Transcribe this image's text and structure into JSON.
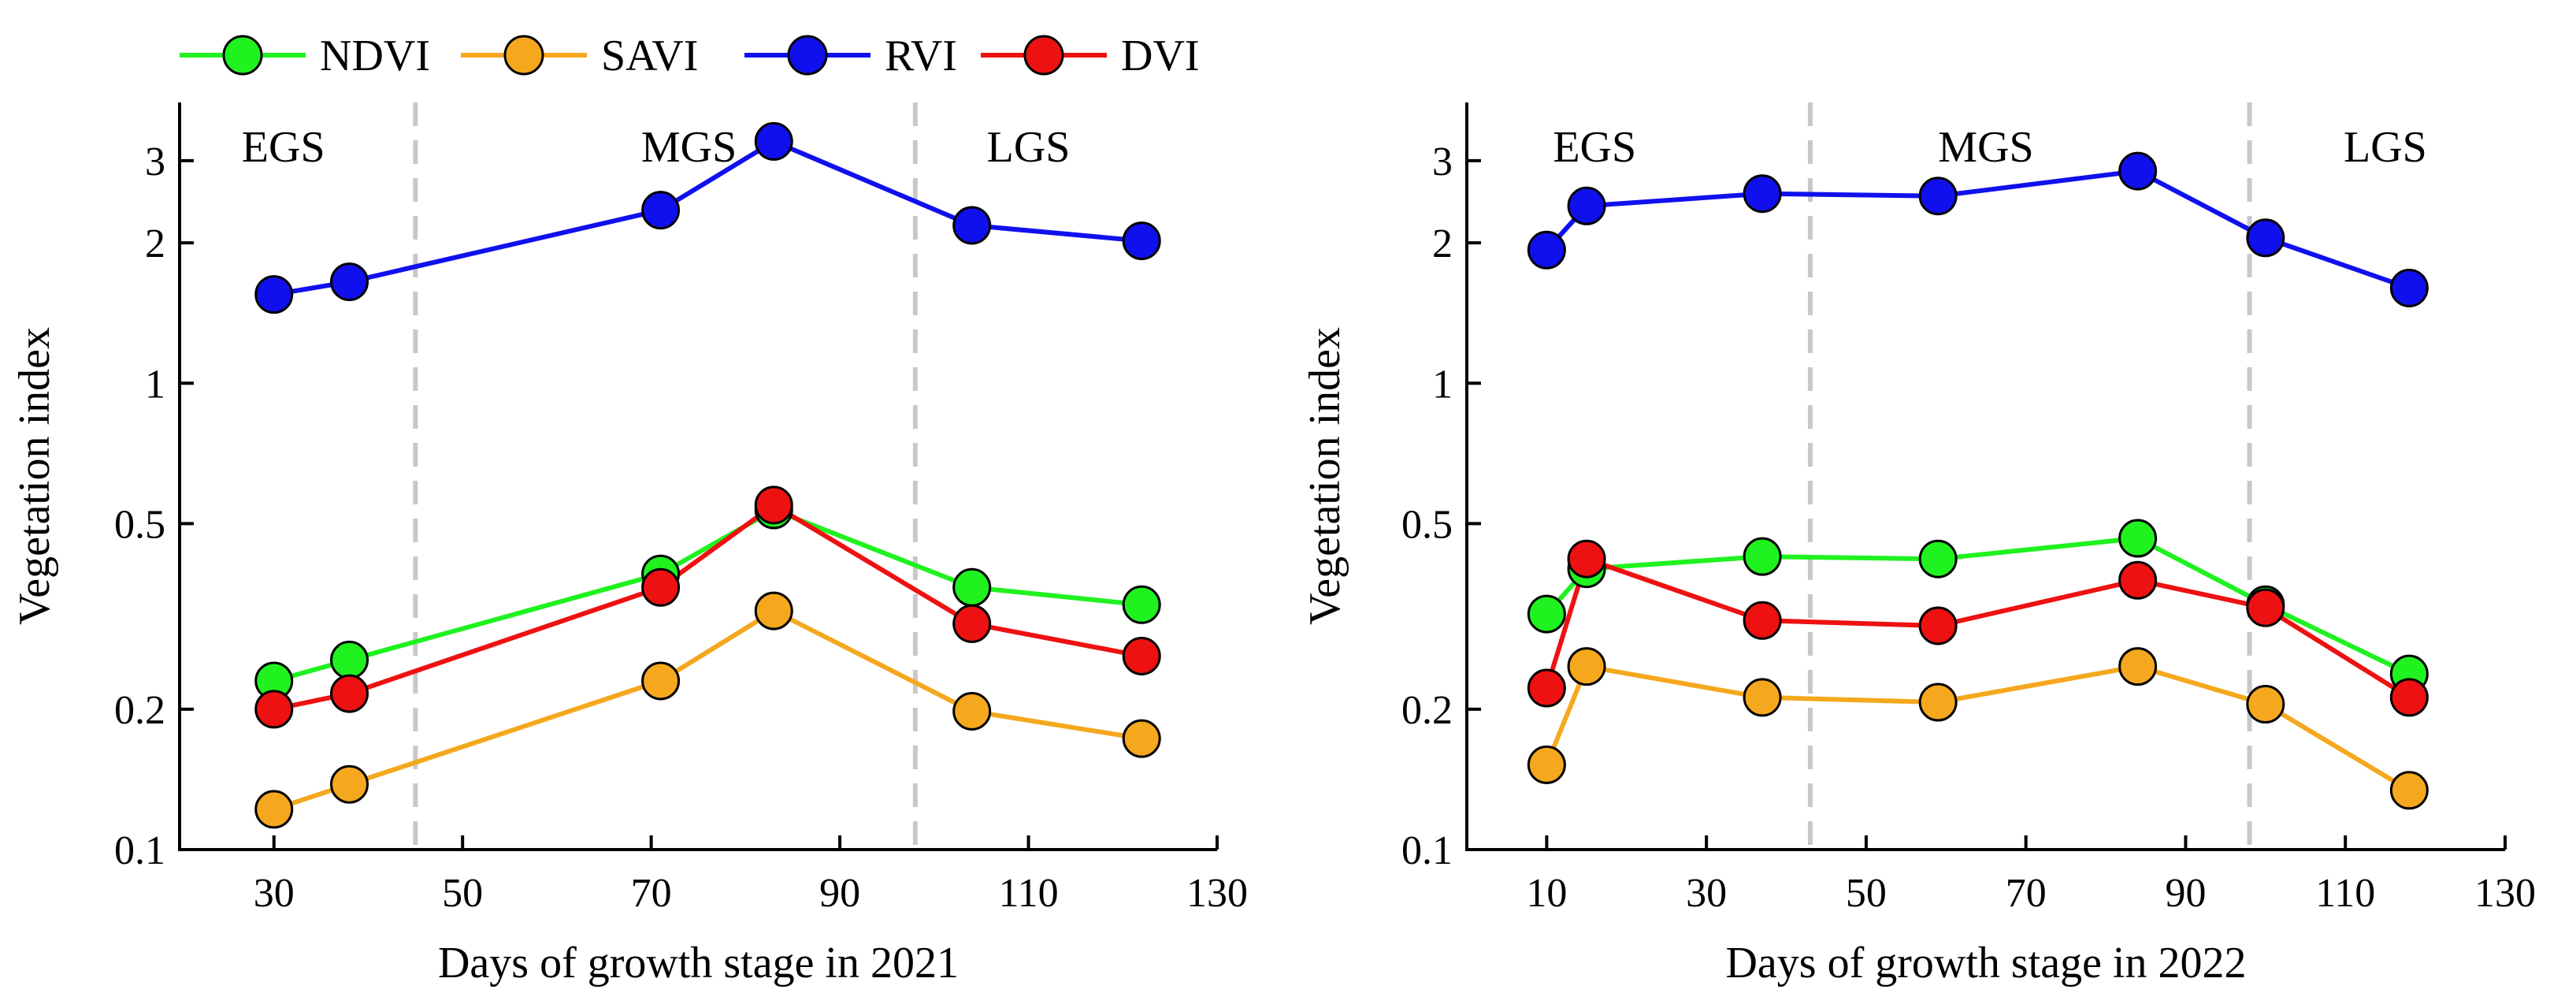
{
  "legend": [
    {
      "name": "NDVI",
      "color": "#1ff21f"
    },
    {
      "name": "SAVI",
      "color": "#f5a81e"
    },
    {
      "name": "RVI",
      "color": "#1010ee"
    },
    {
      "name": "DVI",
      "color": "#ee1111"
    }
  ],
  "chart_data": [
    {
      "type": "line",
      "title": "",
      "xlabel": "Days of growth stage in 2021",
      "ylabel": "Vegetation index",
      "yscale": "log",
      "xlim": [
        20,
        130
      ],
      "ylim": [
        0.1,
        4
      ],
      "xticks": [
        30,
        50,
        70,
        90,
        110,
        130
      ],
      "yticks": [
        0.1,
        0.2,
        0.5,
        1,
        2,
        3
      ],
      "ytick_labels": [
        "0.1",
        "0.2",
        "0.5",
        "1",
        "2",
        "3"
      ],
      "stage_boundaries": [
        45,
        98
      ],
      "stages": [
        {
          "label": "EGS",
          "x": 31
        },
        {
          "label": "MGS",
          "x": 74
        },
        {
          "label": "LGS",
          "x": 110
        }
      ],
      "x": [
        30,
        38,
        71,
        83,
        104,
        122
      ],
      "series": [
        {
          "name": "NDVI",
          "values": [
            0.23,
            0.255,
            0.39,
            0.535,
            0.365,
            0.335
          ]
        },
        {
          "name": "SAVI",
          "values": [
            0.122,
            0.138,
            0.23,
            0.325,
            0.198,
            0.173
          ]
        },
        {
          "name": "RVI",
          "values": [
            1.55,
            1.65,
            2.35,
            3.3,
            2.18,
            2.02
          ]
        },
        {
          "name": "DVI",
          "values": [
            0.2,
            0.216,
            0.365,
            0.548,
            0.305,
            0.26
          ]
        }
      ]
    },
    {
      "type": "line",
      "title": "",
      "xlabel": "Days of growth stage in 2022",
      "ylabel": "Vegetation index",
      "yscale": "log",
      "xlim": [
        0,
        130
      ],
      "ylim": [
        0.1,
        4
      ],
      "xticks": [
        10,
        30,
        50,
        70,
        90,
        110,
        130
      ],
      "yticks": [
        0.1,
        0.2,
        0.5,
        1,
        2,
        3
      ],
      "ytick_labels": [
        "0.1",
        "0.2",
        "0.5",
        "1",
        "2",
        "3"
      ],
      "stage_boundaries": [
        43,
        98
      ],
      "stages": [
        {
          "label": "EGS",
          "x": 16
        },
        {
          "label": "MGS",
          "x": 65
        },
        {
          "label": "LGS",
          "x": 115
        }
      ],
      "x": [
        10,
        15,
        37,
        59,
        84,
        100,
        118
      ],
      "series": [
        {
          "name": "NDVI",
          "values": [
            0.32,
            0.4,
            0.425,
            0.42,
            0.465,
            0.335,
            0.238
          ]
        },
        {
          "name": "SAVI",
          "values": [
            0.152,
            0.247,
            0.212,
            0.207,
            0.247,
            0.205,
            0.134
          ]
        },
        {
          "name": "RVI",
          "values": [
            1.93,
            2.4,
            2.55,
            2.52,
            2.85,
            2.05,
            1.6
          ]
        },
        {
          "name": "DVI",
          "values": [
            0.222,
            0.42,
            0.31,
            0.302,
            0.378,
            0.33,
            0.212
          ]
        }
      ]
    }
  ]
}
